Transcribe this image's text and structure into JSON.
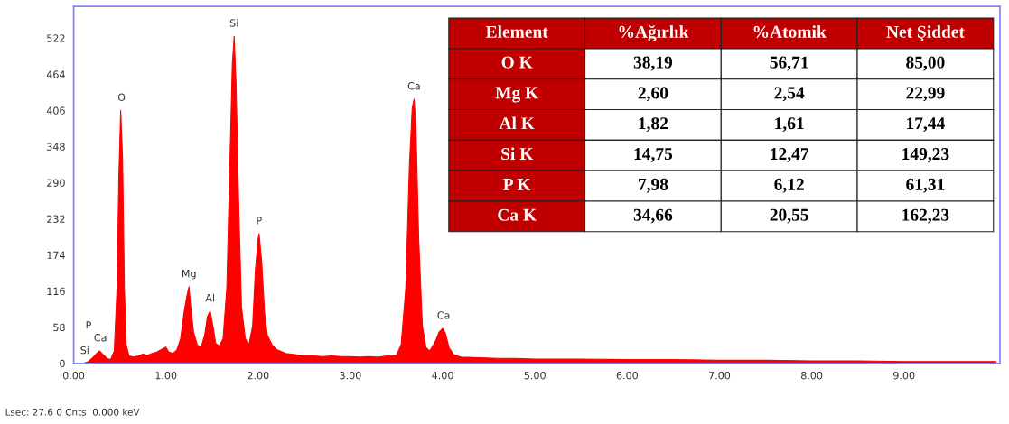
{
  "chart_data": {
    "type": "area",
    "x": [
      0.0,
      0.1,
      0.15,
      0.2,
      0.25,
      0.28,
      0.32,
      0.36,
      0.4,
      0.44,
      0.47,
      0.49,
      0.51,
      0.53,
      0.55,
      0.57,
      0.6,
      0.65,
      0.7,
      0.75,
      0.8,
      0.85,
      0.9,
      0.95,
      1.0,
      1.03,
      1.08,
      1.12,
      1.16,
      1.2,
      1.23,
      1.25,
      1.27,
      1.3,
      1.34,
      1.38,
      1.42,
      1.45,
      1.48,
      1.51,
      1.54,
      1.58,
      1.62,
      1.66,
      1.69,
      1.72,
      1.74,
      1.76,
      1.79,
      1.82,
      1.86,
      1.9,
      1.94,
      1.97,
      2.0,
      2.01,
      2.04,
      2.07,
      2.1,
      2.15,
      2.2,
      2.3,
      2.4,
      2.5,
      2.6,
      2.7,
      2.8,
      2.9,
      3.0,
      3.1,
      3.2,
      3.3,
      3.4,
      3.5,
      3.55,
      3.6,
      3.64,
      3.67,
      3.69,
      3.71,
      3.74,
      3.78,
      3.82,
      3.86,
      3.92,
      3.96,
      4.0,
      4.03,
      4.07,
      4.12,
      4.2,
      4.4,
      4.6,
      4.8,
      5.0,
      5.5,
      6.0,
      6.5,
      7.0,
      7.5,
      8.0,
      8.5,
      9.0,
      9.5,
      10.0
    ],
    "series": [
      {
        "color": "#ff0000",
        "values": [
          0,
          0,
          2,
          8,
          16,
          20,
          14,
          8,
          6,
          20,
          120,
          300,
          406,
          330,
          120,
          30,
          12,
          10,
          12,
          15,
          13,
          16,
          18,
          22,
          26,
          18,
          16,
          22,
          40,
          85,
          110,
          123,
          90,
          50,
          30,
          25,
          45,
          75,
          84,
          60,
          32,
          28,
          40,
          120,
          300,
          480,
          525,
          450,
          250,
          90,
          40,
          30,
          60,
          150,
          200,
          208,
          160,
          80,
          45,
          30,
          22,
          16,
          14,
          12,
          12,
          11,
          12,
          11,
          11,
          10,
          11,
          10,
          12,
          13,
          30,
          120,
          320,
          410,
          424,
          380,
          200,
          60,
          25,
          20,
          35,
          50,
          56,
          48,
          25,
          14,
          10,
          9,
          8,
          8,
          7,
          7,
          6,
          6,
          5,
          5,
          4,
          4,
          3,
          3,
          3
        ]
      }
    ],
    "xlim": [
      0,
      10.04
    ],
    "ylim": [
      0,
      573
    ],
    "xticks": [
      {
        "value": 0,
        "label": "0.00"
      },
      {
        "value": 1,
        "label": "1.00"
      },
      {
        "value": 2,
        "label": "2.00"
      },
      {
        "value": 3,
        "label": "3.00"
      },
      {
        "value": 4,
        "label": "4.00"
      },
      {
        "value": 5,
        "label": "5.00"
      },
      {
        "value": 6,
        "label": "6.00"
      },
      {
        "value": 7,
        "label": "7.00"
      },
      {
        "value": 8,
        "label": "8.00"
      },
      {
        "value": 9,
        "label": "9.00"
      }
    ],
    "yticks": [
      0,
      58,
      116,
      174,
      232,
      290,
      348,
      406,
      464,
      522
    ],
    "annotations": [
      {
        "text": "Si",
        "x": 0.12,
        "y": 0
      },
      "P",
      {
        "text": "Ca",
        "x": 0.29,
        "y": 20
      },
      {
        "text": "O",
        "x": 0.52,
        "y": 406
      },
      {
        "text": "Mg",
        "x": 1.25,
        "y": 123
      },
      {
        "text": "Al",
        "x": 1.48,
        "y": 84
      },
      {
        "text": "Si",
        "x": 1.74,
        "y": 525
      },
      {
        "text": "P",
        "x": 2.01,
        "y": 208
      },
      {
        "text": "Ca",
        "x": 3.69,
        "y": 424
      },
      {
        "text": "Ca",
        "x": 4.01,
        "y": 56
      },
      "Lsec: 27.6 0 Cnts  0.000 keV",
      "Element",
      "%Ağırlık",
      "%Atomik",
      "Net Şiddet",
      "O K",
      "38,19",
      "56,71",
      "85,00",
      "Mg K",
      "2,60",
      "2,54",
      "22,99",
      "Al K",
      "1,82",
      "1,61",
      "17,44",
      "Si K",
      "14,75",
      "12,47",
      "149,23",
      "P K",
      "7,98",
      "6,12",
      "61,31",
      "Ca K",
      "34,66",
      "20,55",
      "162,23"
    ]
  }
}
